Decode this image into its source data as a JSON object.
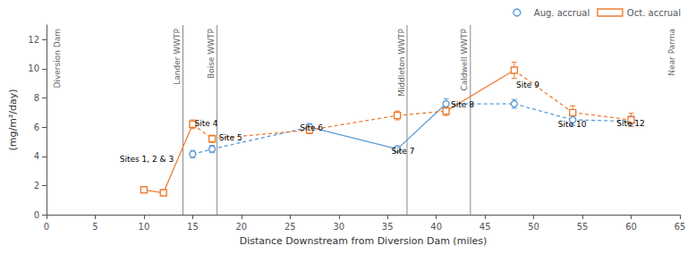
{
  "chart_data": {
    "type": "line",
    "x_label": "Distance Downstream from Diversion Dam (miles)",
    "y_label": "(mg/m²/day)",
    "xlim": [
      0,
      65
    ],
    "ylim": [
      0,
      13
    ],
    "xticks": [
      0,
      5,
      10,
      15,
      20,
      25,
      30,
      35,
      40,
      45,
      50,
      55,
      60,
      65
    ],
    "yticks": [
      0,
      2,
      4,
      6,
      8,
      10,
      12
    ],
    "grid": false,
    "legend": "upper right",
    "series": [
      {
        "name": "Aug. accrual",
        "color": "#5b9bd5",
        "marker": "circle",
        "x": [
          15,
          17,
          27,
          36,
          41,
          48,
          54,
          60
        ],
        "values": [
          4.15,
          4.5,
          6.0,
          4.5,
          7.6,
          7.6,
          6.5,
          6.4
        ],
        "errors": [
          0.25,
          0.25,
          0.25,
          0.2,
          0.35,
          0.3,
          0.4,
          0.35
        ],
        "line_style": [
          "dashed",
          "dashed",
          "solid",
          "solid",
          "dashed",
          "dashed",
          "dashed"
        ]
      },
      {
        "name": "Oct. accrual",
        "color": "#ed7d31",
        "marker": "square",
        "x": [
          10,
          12,
          15,
          17,
          27,
          36,
          41,
          48,
          54,
          60
        ],
        "values": [
          1.7,
          1.5,
          6.2,
          5.2,
          5.8,
          6.8,
          7.1,
          9.9,
          7.0,
          6.5
        ],
        "errors": [
          0.15,
          0.15,
          0.3,
          0.25,
          0.25,
          0.3,
          0.3,
          0.55,
          0.45,
          0.45
        ],
        "line_style": [
          "solid",
          "solid",
          "dashed",
          "dashed",
          "dashed",
          "dashed",
          "solid",
          "dashed",
          "dashed"
        ]
      }
    ],
    "vlines": [
      {
        "x": 14.0,
        "label": "Lander WWTP"
      },
      {
        "x": 17.5,
        "label": "Boise WWTP"
      },
      {
        "x": 37.0,
        "label": "Middleton WWTP"
      },
      {
        "x": 43.5,
        "label": "Caldwell WWTP"
      }
    ],
    "annotations": [
      {
        "text": "Diversion Dam",
        "x": 0.5
      },
      {
        "text": "Near Parma",
        "x": 64.8
      },
      {
        "text": "Site 4",
        "x": 15.2,
        "y": 5.95
      },
      {
        "text": "Site 5",
        "x": 17.7,
        "y": 5.0
      },
      {
        "text": "Site 6",
        "x": 26.0,
        "y": 5.65
      },
      {
        "text": "Site 7",
        "x": 35.4,
        "y": 4.1
      },
      {
        "text": "Site 8",
        "x": 41.5,
        "y": 7.25
      },
      {
        "text": "Site 9",
        "x": 48.2,
        "y": 8.6
      },
      {
        "text": "Site 10",
        "x": 52.5,
        "y": 5.9
      },
      {
        "text": "Site 12",
        "x": 58.5,
        "y": 5.95
      },
      {
        "text": "Sites 1, 2 & 3",
        "x": 7.5,
        "y": 3.5
      }
    ]
  }
}
